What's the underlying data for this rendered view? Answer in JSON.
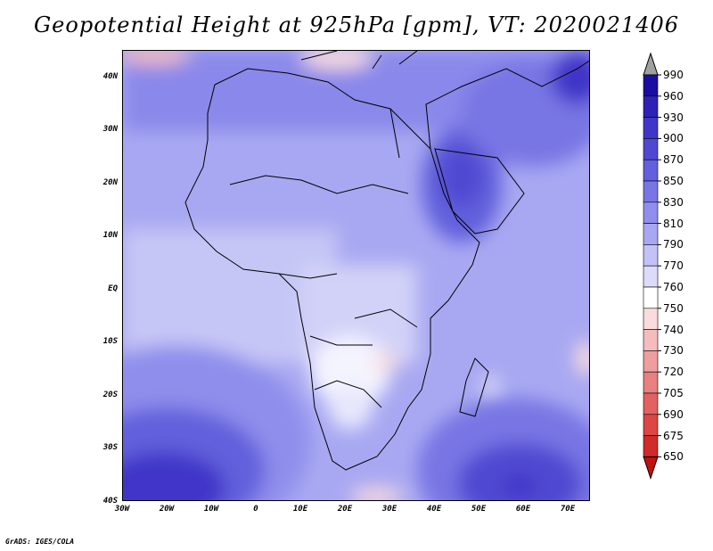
{
  "title": "Geopotential Height at 925hPa [gpm], VT: 2020021406",
  "credit": "GrADS: IGES/COLA",
  "map": {
    "lon_range": [
      -30,
      75
    ],
    "lat_range": [
      -40,
      45
    ],
    "lon_ticks": [
      {
        "value": -30,
        "label": "30W"
      },
      {
        "value": -20,
        "label": "20W"
      },
      {
        "value": -10,
        "label": "10W"
      },
      {
        "value": 0,
        "label": "0"
      },
      {
        "value": 10,
        "label": "10E"
      },
      {
        "value": 20,
        "label": "20E"
      },
      {
        "value": 30,
        "label": "30E"
      },
      {
        "value": 40,
        "label": "40E"
      },
      {
        "value": 50,
        "label": "50E"
      },
      {
        "value": 60,
        "label": "60E"
      },
      {
        "value": 70,
        "label": "70E"
      }
    ],
    "lat_ticks": [
      {
        "value": 40,
        "label": "40N"
      },
      {
        "value": 30,
        "label": "30N"
      },
      {
        "value": 20,
        "label": "20N"
      },
      {
        "value": 10,
        "label": "10N"
      },
      {
        "value": 0,
        "label": "EQ"
      },
      {
        "value": -10,
        "label": "10S"
      },
      {
        "value": -20,
        "label": "20S"
      },
      {
        "value": -30,
        "label": "30S"
      },
      {
        "value": -40,
        "label": "40S"
      }
    ]
  },
  "colorbar": {
    "levels": [
      "990",
      "960",
      "930",
      "900",
      "870",
      "850",
      "830",
      "810",
      "790",
      "770",
      "760",
      "750",
      "740",
      "730",
      "720",
      "705",
      "690",
      "675",
      "650"
    ],
    "colors": [
      "#a0a0a0",
      "#1a0ea0",
      "#2d22b4",
      "#3f36c8",
      "#5048d2",
      "#6260dc",
      "#7876e4",
      "#8f8eec",
      "#a8a8f2",
      "#c2c2f6",
      "#dcdcfa",
      "#ffffff",
      "#fadcdc",
      "#f4bcbc",
      "#ee9e9e",
      "#e88080",
      "#e26262",
      "#dc4646",
      "#d02a2a",
      "#c01010"
    ]
  }
}
